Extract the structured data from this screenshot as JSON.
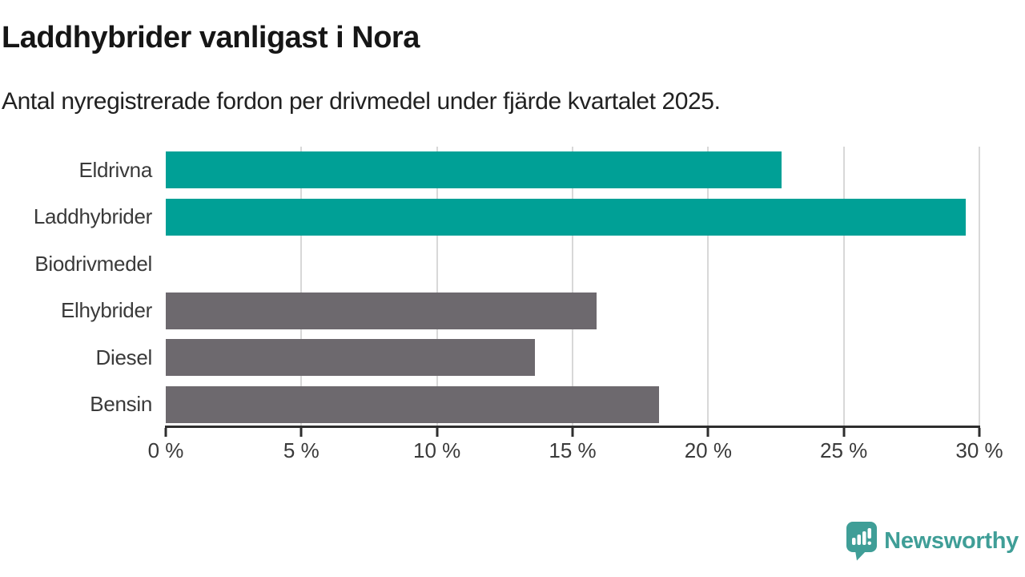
{
  "header": {
    "title": "Laddhybrider vanligast i Nora",
    "subtitle": "Antal nyregistrerade fordon per drivmedel under fjärde kvartalet 2025."
  },
  "chart_data": {
    "type": "bar",
    "orientation": "horizontal",
    "title": "Laddhybrider vanligast i Nora",
    "subtitle": "Antal nyregistrerade fordon per drivmedel under fjärde kvartalet 2025.",
    "categories": [
      "Eldrivna",
      "Laddhybrider",
      "Biodrivmedel",
      "Elhybrider",
      "Diesel",
      "Bensin"
    ],
    "values": [
      22.7,
      29.5,
      0,
      15.9,
      13.6,
      18.2
    ],
    "unit": "%",
    "xlabel": "",
    "ylabel": "",
    "xlim": [
      0,
      30
    ],
    "xticks": [
      0,
      5,
      10,
      15,
      20,
      25,
      30
    ],
    "xtick_labels": [
      "0 %",
      "5 %",
      "10 %",
      "15 %",
      "20 %",
      "25 %",
      "30 %"
    ],
    "bar_colors": [
      "#00a096",
      "#00a096",
      "#6d696e",
      "#6d696e",
      "#6d696e",
      "#6d696e"
    ],
    "grid": "vertical-gridlines-at-ticks",
    "legend": "none",
    "colors": {
      "highlight": "#00a096",
      "default": "#6d696e",
      "gridline": "#d8d8d8",
      "axis": "#2e2e2e"
    }
  },
  "footer": {
    "brand": "Newsworthy",
    "brand_color": "#3f9e97",
    "brand_icon": "bar-chart-speech-bubble-icon"
  }
}
